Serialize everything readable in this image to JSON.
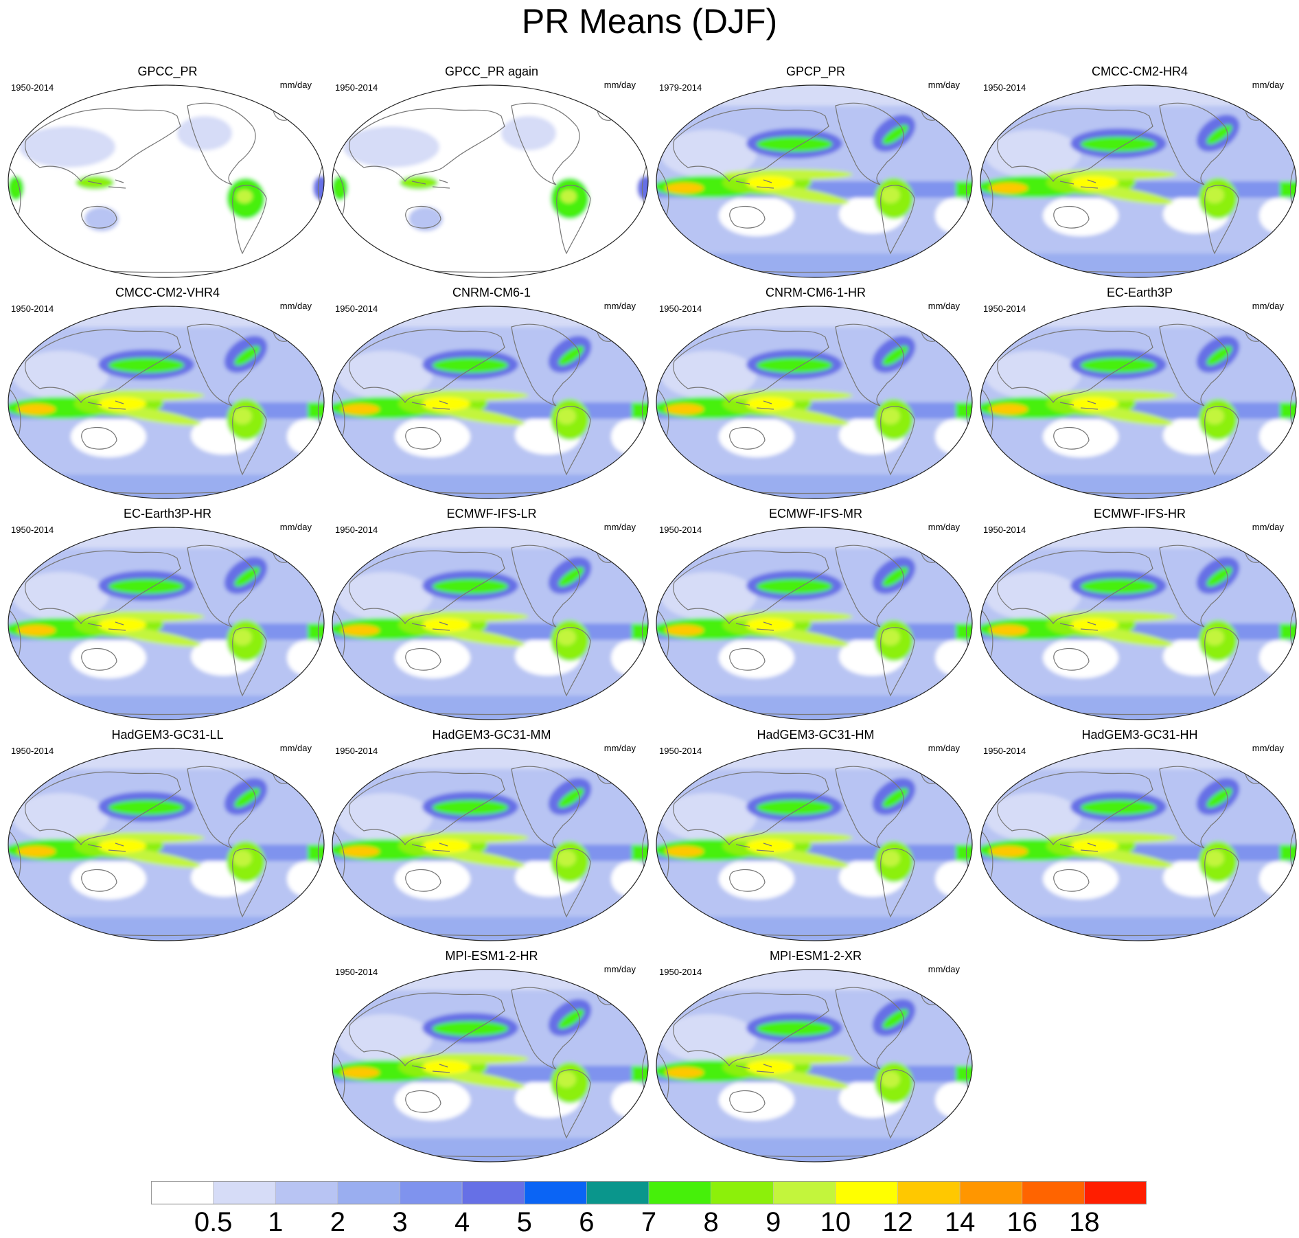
{
  "title": "PR Means (DJF)",
  "panels": [
    {
      "title": "GPCC_PR",
      "period": "1950-2014",
      "units": "mm/day",
      "style": "land"
    },
    {
      "title": "GPCC_PR again",
      "period": "1950-2014",
      "units": "mm/day",
      "style": "land"
    },
    {
      "title": "GPCP_PR",
      "period": "1979-2014",
      "units": "mm/day",
      "style": "full"
    },
    {
      "title": "CMCC-CM2-HR4",
      "period": "1950-2014",
      "units": "mm/day",
      "style": "full"
    },
    {
      "title": "CMCC-CM2-VHR4",
      "period": "1950-2014",
      "units": "mm/day",
      "style": "full"
    },
    {
      "title": "CNRM-CM6-1",
      "period": "1950-2014",
      "units": "mm/day",
      "style": "full"
    },
    {
      "title": "CNRM-CM6-1-HR",
      "period": "1950-2014",
      "units": "mm/day",
      "style": "full"
    },
    {
      "title": "EC-Earth3P",
      "period": "1950-2014",
      "units": "mm/day",
      "style": "full"
    },
    {
      "title": "EC-Earth3P-HR",
      "period": "1950-2014",
      "units": "mm/day",
      "style": "full"
    },
    {
      "title": "ECMWF-IFS-LR",
      "period": "1950-2014",
      "units": "mm/day",
      "style": "full"
    },
    {
      "title": "ECMWF-IFS-MR",
      "period": "1950-2014",
      "units": "mm/day",
      "style": "full"
    },
    {
      "title": "ECMWF-IFS-HR",
      "period": "1950-2014",
      "units": "mm/day",
      "style": "full"
    },
    {
      "title": "HadGEM3-GC31-LL",
      "period": "1950-2014",
      "units": "mm/day",
      "style": "full"
    },
    {
      "title": "HadGEM3-GC31-MM",
      "period": "1950-2014",
      "units": "mm/day",
      "style": "full"
    },
    {
      "title": "HadGEM3-GC31-HM",
      "period": "1950-2014",
      "units": "mm/day",
      "style": "full"
    },
    {
      "title": "HadGEM3-GC31-HH",
      "period": "1950-2014",
      "units": "mm/day",
      "style": "full"
    },
    {
      "title": "MPI-ESM1-2-HR",
      "period": "1950-2014",
      "units": "mm/day",
      "style": "full"
    },
    {
      "title": "MPI-ESM1-2-XR",
      "period": "1950-2014",
      "units": "mm/day",
      "style": "full"
    }
  ],
  "colorbar": {
    "labels": [
      "0.5",
      "1",
      "2",
      "3",
      "4",
      "5",
      "6",
      "7",
      "8",
      "9",
      "10",
      "12",
      "14",
      "16",
      "18"
    ],
    "colors": [
      "#ffffff",
      "#d6dcf7",
      "#b8c4f3",
      "#9aaef0",
      "#7f93ee",
      "#6670e6",
      "#0a64f5",
      "#0a968c",
      "#46f00a",
      "#8cf00a",
      "#c3f53c",
      "#ffff00",
      "#ffc800",
      "#ff9600",
      "#ff6400",
      "#ff1e00"
    ]
  }
}
